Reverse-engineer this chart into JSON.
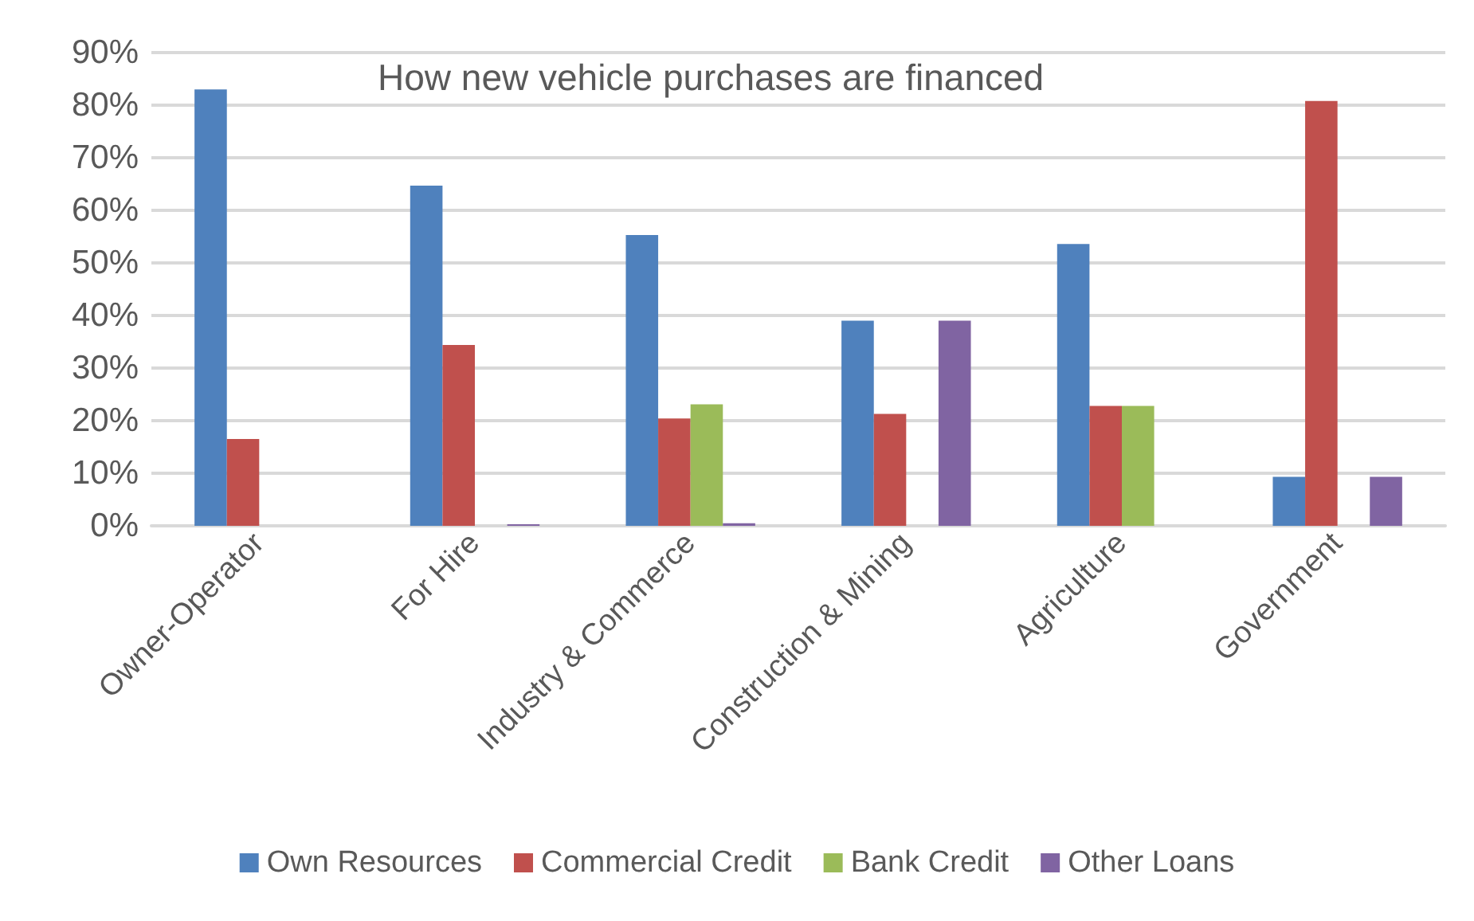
{
  "chart_data": {
    "type": "bar",
    "title": "How new vehicle purchases are financed",
    "categories": [
      "Owner-Operator",
      "For Hire",
      "Industry & Commerce",
      "Construction & Mining",
      "Agriculture",
      "Government"
    ],
    "series": [
      {
        "name": "Own Resources",
        "color": "#4f81bd",
        "values": [
          83,
          64.7,
          55.3,
          39,
          53.6,
          9.3
        ]
      },
      {
        "name": "Commercial Credit",
        "color": "#c0504d",
        "values": [
          16.5,
          34.4,
          20.4,
          21.3,
          22.8,
          80.8
        ]
      },
      {
        "name": "Bank Credit",
        "color": "#9bbb59",
        "values": [
          0,
          0,
          23.1,
          0,
          22.8,
          0
        ]
      },
      {
        "name": "Other Loans",
        "color": "#8064a2",
        "values": [
          0,
          0.3,
          0.5,
          39,
          0,
          9.3
        ]
      }
    ],
    "ylim": [
      0,
      90
    ],
    "yticks": [
      {
        "value": 0,
        "label": "0%"
      },
      {
        "value": 10,
        "label": "10%"
      },
      {
        "value": 20,
        "label": "20%"
      },
      {
        "value": 30,
        "label": "30%"
      },
      {
        "value": 40,
        "label": "40%"
      },
      {
        "value": 50,
        "label": "50%"
      },
      {
        "value": 60,
        "label": "60%"
      },
      {
        "value": 70,
        "label": "70%"
      },
      {
        "value": 80,
        "label": "80%"
      },
      {
        "value": 90,
        "label": "90%"
      }
    ],
    "grid": "y",
    "legend": "bottom"
  }
}
